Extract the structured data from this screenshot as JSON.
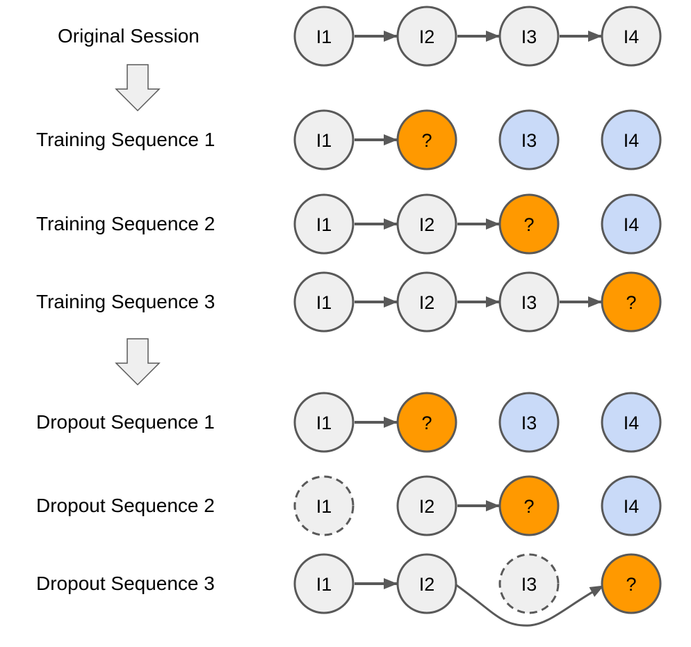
{
  "colors": {
    "stroke": "#595959",
    "known": "#efefef",
    "target": "#ff9900",
    "future": "#c9daf8"
  },
  "rows": [
    {
      "label": "Original Session",
      "nodes": [
        [
          "I1",
          "known"
        ],
        [
          "I2",
          "known"
        ],
        [
          "I3",
          "known"
        ],
        [
          "I4",
          "known"
        ]
      ],
      "edges": [
        [
          0,
          1
        ],
        [
          1,
          2
        ],
        [
          2,
          3
        ]
      ]
    },
    {
      "label": "Training Sequence 1",
      "nodes": [
        [
          "I1",
          "known"
        ],
        [
          "?",
          "target"
        ],
        [
          "I3",
          "future"
        ],
        [
          "I4",
          "future"
        ]
      ],
      "edges": [
        [
          0,
          1
        ]
      ]
    },
    {
      "label": "Training Sequence 2",
      "nodes": [
        [
          "I1",
          "known"
        ],
        [
          "I2",
          "known"
        ],
        [
          "?",
          "target"
        ],
        [
          "I4",
          "future"
        ]
      ],
      "edges": [
        [
          0,
          1
        ],
        [
          1,
          2
        ]
      ]
    },
    {
      "label": "Training Sequence 3",
      "nodes": [
        [
          "I1",
          "known"
        ],
        [
          "I2",
          "known"
        ],
        [
          "I3",
          "known"
        ],
        [
          "?",
          "target"
        ]
      ],
      "edges": [
        [
          0,
          1
        ],
        [
          1,
          2
        ],
        [
          2,
          3
        ]
      ]
    },
    {
      "label": "Dropout Sequence 1",
      "nodes": [
        [
          "I1",
          "known"
        ],
        [
          "?",
          "target"
        ],
        [
          "I3",
          "future"
        ],
        [
          "I4",
          "future"
        ]
      ],
      "edges": [
        [
          0,
          1
        ]
      ]
    },
    {
      "label": "Dropout Sequence 2",
      "nodes": [
        [
          "I1",
          "dropped"
        ],
        [
          "I2",
          "known"
        ],
        [
          "?",
          "target"
        ],
        [
          "I4",
          "future"
        ]
      ],
      "edges": [
        [
          1,
          2
        ]
      ]
    },
    {
      "label": "Dropout Sequence 3",
      "nodes": [
        [
          "I1",
          "known"
        ],
        [
          "I2",
          "known"
        ],
        [
          "I3",
          "dropped"
        ],
        [
          "?",
          "target"
        ]
      ],
      "edges": [
        [
          0,
          1
        ],
        [
          1,
          3
        ]
      ]
    }
  ],
  "transitions": [
    "down-arrow",
    "down-arrow"
  ]
}
